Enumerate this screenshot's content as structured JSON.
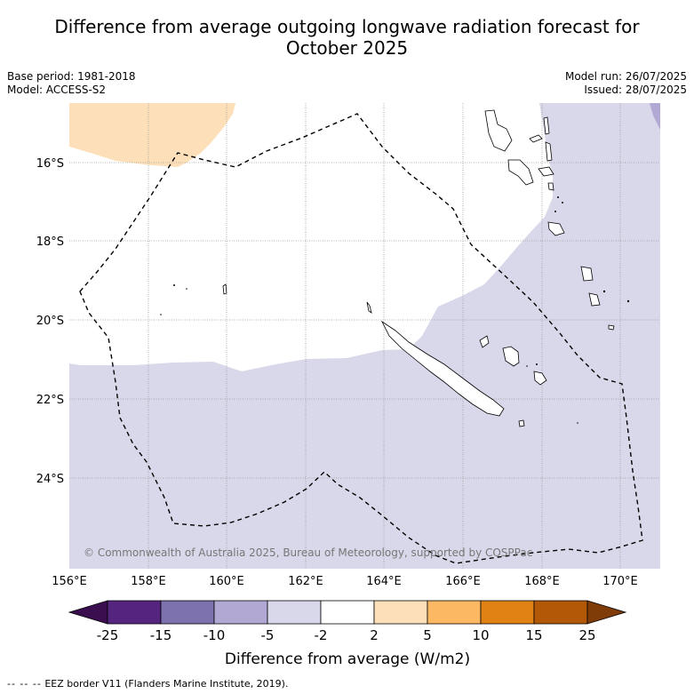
{
  "title_line1": "Difference from average outgoing longwave radiation forecast for",
  "title_line2": "October 2025",
  "meta_left": {
    "base_period": "Base period: 1981-2018",
    "model": "Model: ACCESS-S2"
  },
  "meta_right": {
    "model_run": "Model run: 26/07/2025",
    "issued": "Issued: 28/07/2025"
  },
  "map": {
    "lat_labels": [
      "16°S",
      "18°S",
      "20°S",
      "22°S",
      "24°S"
    ],
    "lon_labels": [
      "156°E",
      "158°E",
      "160°E",
      "162°E",
      "164°E",
      "166°E",
      "168°E",
      "170°E"
    ],
    "credit": "© Commonwealth of Australia 2025, Bureau of Meteorology, supported by COSPPac",
    "colors": {
      "orange_light": "#fde0b9",
      "purple_light": "#d8d8ea",
      "purple_mid": "#b1a9d4",
      "coast": "#000000",
      "grid": "#999999"
    }
  },
  "colorbar": {
    "labels": [
      "-25",
      "-15",
      "-10",
      "-5",
      "-2",
      "2",
      "5",
      "10",
      "15",
      "25"
    ],
    "colors": [
      "#3b0f4f",
      "#55247f",
      "#7d71ae",
      "#b1a9d4",
      "#d8d8ea",
      "#ffffff",
      "#fde0b9",
      "#fdb863",
      "#e08214",
      "#b35806",
      "#7f3b08"
    ],
    "label": "Difference from average (W/m2)"
  },
  "footer": {
    "dashes": "-- -- --",
    "text": "EEZ border V11 (Flanders Marine Institute, 2019)."
  }
}
